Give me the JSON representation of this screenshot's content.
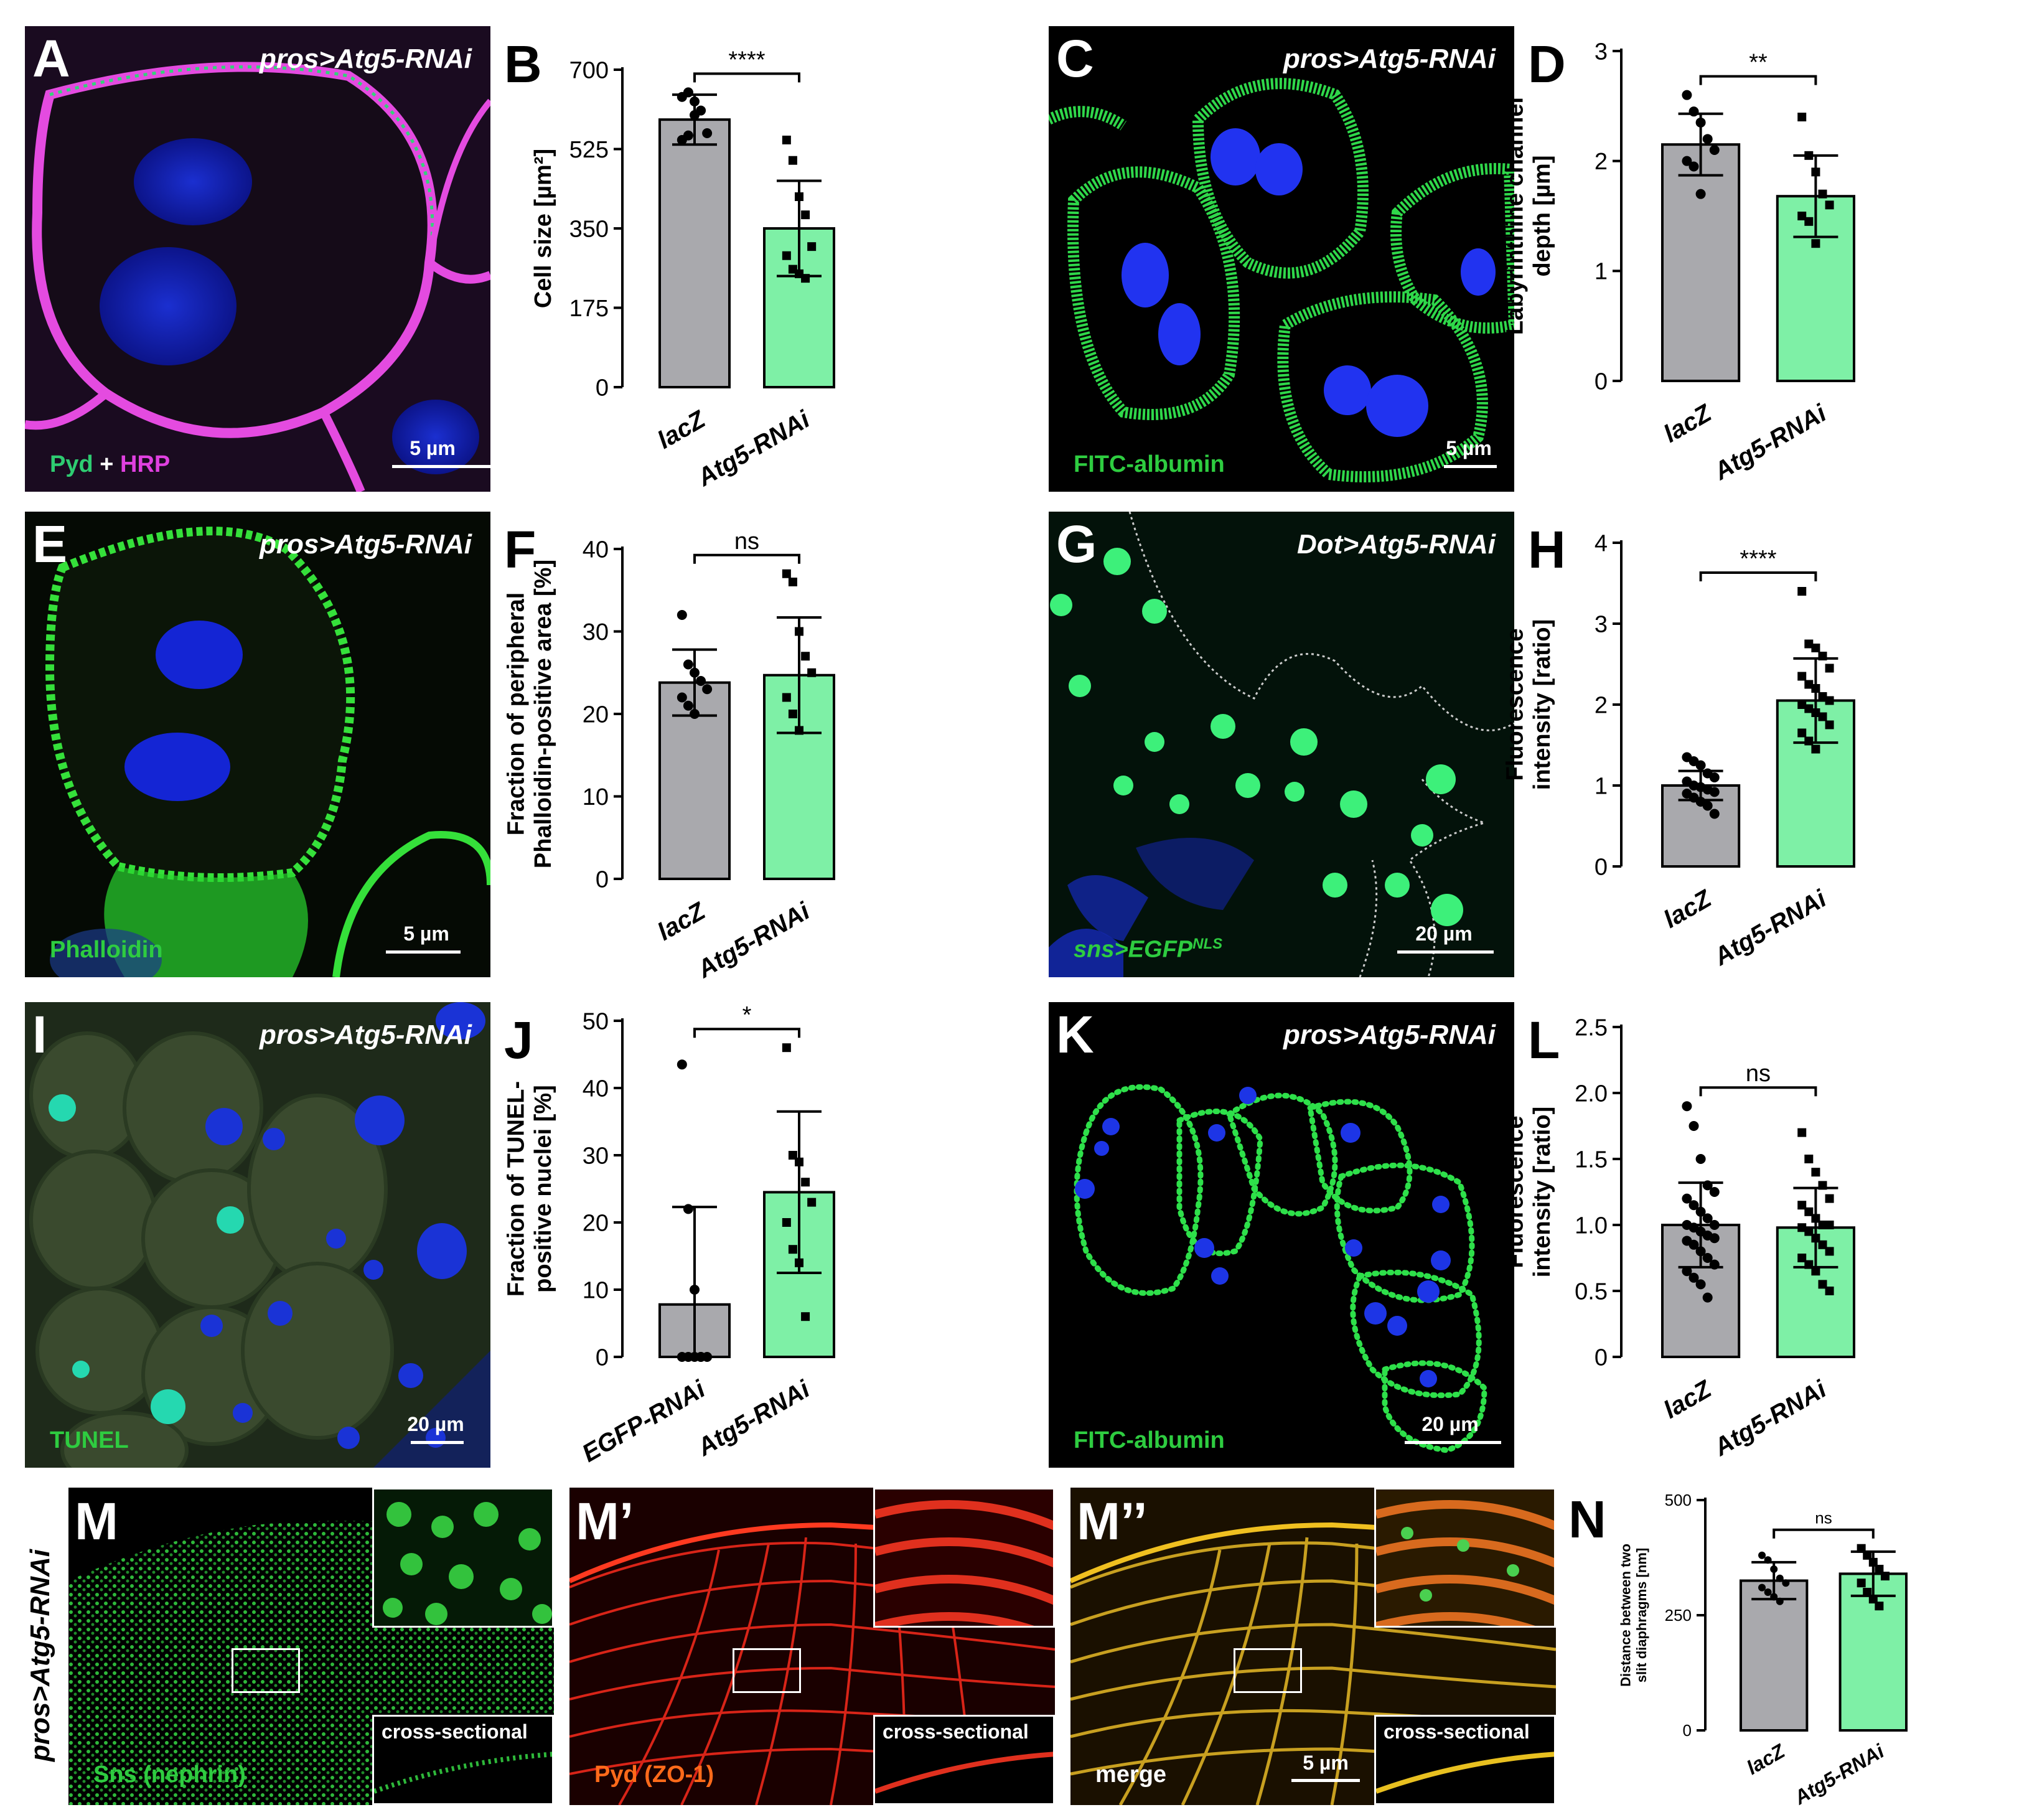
{
  "panels": {
    "A": {
      "letter": "A",
      "genotype": "pros>Atg5-RNAi",
      "stain_a": "Pyd",
      "stain_plus": " + ",
      "stain_b": "HRP",
      "scale": "5 µm",
      "colors": {
        "green": "#2ecc71",
        "magenta": "#e040e0"
      }
    },
    "C": {
      "letter": "C",
      "genotype": "pros>Atg5-RNAi",
      "stain": "FITC-albumin",
      "scale": "5 µm"
    },
    "E": {
      "letter": "E",
      "genotype": "pros>Atg5-RNAi",
      "stain": "Phalloidin",
      "scale": "5 µm"
    },
    "G": {
      "letter": "G",
      "genotype": "Dot>Atg5-RNAi",
      "stain": "sns>EGFP",
      "stain_sup": "NLS",
      "scale": "20 µm"
    },
    "I": {
      "letter": "I",
      "genotype": "pros>Atg5-RNAi",
      "stain": "TUNEL",
      "scale": "20 µm"
    },
    "K": {
      "letter": "K",
      "genotype": "pros>Atg5-RNAi",
      "stain": "FITC-albumin",
      "scale": "20 µm"
    },
    "M": {
      "letter": "M",
      "stain": "Sns (nephrin)",
      "inset": "cross-sectional"
    },
    "M1": {
      "letter": "M’",
      "stain": "Pyd (ZO-1)",
      "inset": "cross-sectional"
    },
    "M2": {
      "letter": "M’’",
      "stain": "merge",
      "inset": "cross-sectional",
      "scale": "5 µm"
    },
    "side_genotype": "pros>Atg5-RNAi"
  },
  "chart_data": [
    {
      "id": "B",
      "letter": "B",
      "type": "bar",
      "categories": [
        "lacZ",
        "Atg5-RNAi"
      ],
      "values": [
        590,
        350
      ],
      "errors": [
        55,
        105
      ],
      "points": [
        [
          640,
          650,
          600,
          610,
          560,
          545,
          555,
          630
        ],
        [
          545,
          500,
          420,
          380,
          310,
          290,
          260,
          250,
          240
        ]
      ],
      "ylabel": "Cell size [µm²]",
      "ylim": [
        0,
        700
      ],
      "yticks": [
        "0",
        "175",
        "350",
        "525",
        "700"
      ],
      "significance": "****"
    },
    {
      "id": "D",
      "letter": "D",
      "type": "bar",
      "categories": [
        "lacZ",
        "Atg5-RNAi"
      ],
      "values": [
        2.15,
        1.68
      ],
      "errors": [
        0.28,
        0.37
      ],
      "points": [
        [
          2.6,
          2.45,
          2.35,
          2.2,
          2.1,
          2.0,
          1.95,
          1.7
        ],
        [
          2.4,
          2.05,
          1.9,
          1.7,
          1.6,
          1.5,
          1.45,
          1.25
        ]
      ],
      "ylabel_lines": [
        "Labyrinthine channel",
        "depth [µm]"
      ],
      "ylim": [
        0,
        3
      ],
      "yticks": [
        "0",
        "1",
        "2",
        "3"
      ],
      "significance": "**"
    },
    {
      "id": "F",
      "letter": "F",
      "type": "bar",
      "categories": [
        "lacZ",
        "Atg5-RNAi"
      ],
      "values": [
        23.8,
        24.7
      ],
      "errors": [
        4,
        7
      ],
      "points": [
        [
          32,
          26,
          25,
          24,
          23,
          22,
          21,
          20
        ],
        [
          37,
          36,
          30,
          27,
          25,
          22,
          20,
          18
        ]
      ],
      "ylabel_lines": [
        "Fraction of peripheral",
        "Phalloidin-positive area [%]"
      ],
      "ylim": [
        0,
        40
      ],
      "yticks": [
        "0",
        "10",
        "20",
        "30",
        "40"
      ],
      "significance": "ns"
    },
    {
      "id": "H",
      "letter": "H",
      "type": "bar",
      "categories": [
        "lacZ",
        "Atg5-RNAi"
      ],
      "values": [
        1.0,
        2.05
      ],
      "errors": [
        0.18,
        0.52
      ],
      "points": [
        [
          1.35,
          1.3,
          1.25,
          1.15,
          1.1,
          1.05,
          1.0,
          0.98,
          0.95,
          0.92,
          0.9,
          0.85,
          0.8,
          0.75,
          0.65
        ],
        [
          3.4,
          2.75,
          2.7,
          2.6,
          2.45,
          2.35,
          2.25,
          2.2,
          2.1,
          2.05,
          2.0,
          1.95,
          1.9,
          1.85,
          1.75,
          1.65,
          1.55,
          1.45
        ]
      ],
      "ylabel_lines": [
        "Fluorescence",
        "intensity [ratio]"
      ],
      "ylim": [
        0,
        4
      ],
      "yticks": [
        "0",
        "1",
        "2",
        "3",
        "4"
      ],
      "significance": "****"
    },
    {
      "id": "J",
      "letter": "J",
      "type": "bar",
      "categories": [
        "EGFP-RNAi",
        "Atg5-RNAi"
      ],
      "values": [
        7.8,
        24.5
      ],
      "errors": [
        14.5,
        12
      ],
      "points": [
        [
          43.5,
          22,
          10,
          0,
          0,
          0,
          0,
          0,
          0
        ],
        [
          46,
          30,
          29,
          26,
          23,
          20,
          16,
          14,
          6
        ]
      ],
      "ylabel_lines": [
        "Fraction of TUNEL-",
        "positive nuclei [%]"
      ],
      "ylim": [
        0,
        50
      ],
      "yticks": [
        "0",
        "10",
        "20",
        "30",
        "40",
        "50"
      ],
      "significance": "*"
    },
    {
      "id": "L",
      "letter": "L",
      "type": "bar",
      "categories": [
        "lacZ",
        "Atg5-RNAi"
      ],
      "values": [
        1.0,
        0.98
      ],
      "errors": [
        0.32,
        0.3
      ],
      "points": [
        [
          1.9,
          1.75,
          1.5,
          1.3,
          1.25,
          1.2,
          1.15,
          1.1,
          1.05,
          1.0,
          1.0,
          0.98,
          0.95,
          0.92,
          0.9,
          0.88,
          0.85,
          0.8,
          0.75,
          0.7,
          0.65,
          0.6,
          0.55,
          0.45
        ],
        [
          1.7,
          1.5,
          1.4,
          1.3,
          1.2,
          1.15,
          1.1,
          1.05,
          1.0,
          1.0,
          0.98,
          0.95,
          0.9,
          0.85,
          0.8,
          0.75,
          0.7,
          0.65,
          0.55,
          0.5
        ]
      ],
      "ylabel_lines": [
        "Fluorescence",
        "intensity [ratio]"
      ],
      "ylim": [
        0,
        2.5
      ],
      "yticks": [
        "0",
        "0.5",
        "1.0",
        "1.5",
        "2.0",
        "2.5"
      ],
      "significance": "ns"
    },
    {
      "id": "N",
      "letter": "N",
      "type": "bar",
      "categories": [
        "lacZ",
        "Atg5-RNAi"
      ],
      "values": [
        325,
        340
      ],
      "errors": [
        40,
        48
      ],
      "points": [
        [
          380,
          370,
          350,
          330,
          320,
          310,
          300,
          290,
          280
        ],
        [
          395,
          380,
          365,
          350,
          335,
          320,
          300,
          285,
          270
        ]
      ],
      "ylabel_lines": [
        "Distance between two",
        "slit diaphragms [nm]"
      ],
      "ylim": [
        0,
        500
      ],
      "yticks": [
        "0",
        "250",
        "500"
      ],
      "significance": "ns"
    }
  ],
  "colors": {
    "gray_bar": "#a9a9ad",
    "green_bar": "#7ef0a6",
    "axis": "#000"
  }
}
